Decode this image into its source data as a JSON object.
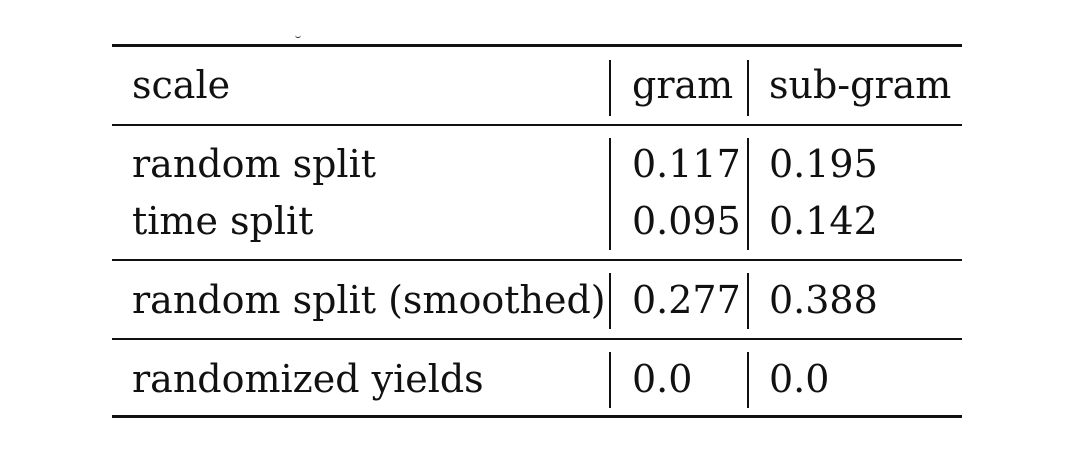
{
  "table": {
    "headers": [
      "scale",
      "gram",
      "sub-gram"
    ],
    "groups": [
      {
        "rows": [
          {
            "label": "random split",
            "gram": "0.117",
            "subgram": "0.195"
          },
          {
            "label": "time split",
            "gram": "0.095",
            "subgram": "0.142"
          }
        ]
      },
      {
        "rows": [
          {
            "label": "random split (smoothed)",
            "gram": "0.277",
            "subgram": "0.388"
          }
        ]
      },
      {
        "rows": [
          {
            "label": "randomized yields",
            "gram": "0.0",
            "subgram": "0.0"
          }
        ]
      }
    ]
  }
}
